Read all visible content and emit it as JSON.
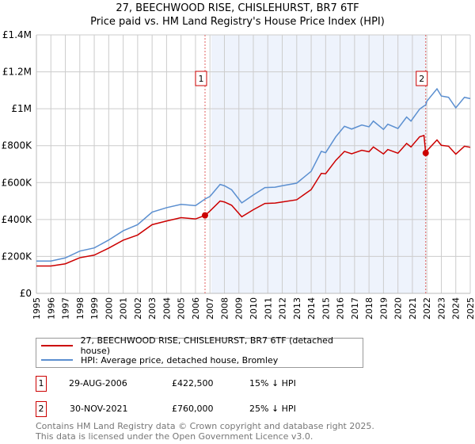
{
  "title_line1": "27, BEECHWOOD RISE, CHISLEHURST, BR7 6TF",
  "title_line2": "Price paid vs. HM Land Registry's House Price Index (HPI)",
  "legend": {
    "property": "27, BEECHWOOD RISE, CHISLEHURST, BR7 6TF (detached house)",
    "hpi": "HPI: Average price, detached house, Bromley"
  },
  "colors": {
    "property": "#cc0000",
    "hpi": "#5b8fd0",
    "shade": "#eef3fc"
  },
  "sales": [
    {
      "num": "1",
      "date": "29-AUG-2006",
      "price": "£422,500",
      "delta": "15% ↓ HPI"
    },
    {
      "num": "2",
      "date": "30-NOV-2021",
      "price": "£760,000",
      "delta": "25% ↓ HPI"
    }
  ],
  "footer": {
    "line1": "Contains HM Land Registry data © Crown copyright and database right 2025.",
    "line2": "This data is licensed under the Open Government Licence v3.0."
  },
  "chart_data": {
    "type": "line",
    "title": "Price paid vs. HM Land Registry's House Price Index (HPI)",
    "xlim": [
      1995,
      2025
    ],
    "ylim": [
      0,
      1400
    ],
    "y_unit": "£K",
    "ytick_values": [
      0,
      200,
      400,
      600,
      800,
      1000,
      1200,
      1400
    ],
    "ytick_labels": [
      "£0",
      "£200K",
      "£400K",
      "£600K",
      "£800K",
      "£1M",
      "£1.2M",
      "£1.4M"
    ],
    "xtick_labels": [
      "1995",
      "1996",
      "1997",
      "1998",
      "1999",
      "2000",
      "2001",
      "2002",
      "2003",
      "2004",
      "2005",
      "2006",
      "2007",
      "2008",
      "2009",
      "2010",
      "2011",
      "2012",
      "2013",
      "2014",
      "2015",
      "2016",
      "2017",
      "2018",
      "2019",
      "2020",
      "2021",
      "2022",
      "2023",
      "2024",
      "2025"
    ],
    "grid": true,
    "shaded_range": [
      2007.1,
      2021.92
    ],
    "x": [
      1995,
      1996,
      1997,
      1998,
      1999,
      2000,
      2001,
      2002,
      2003,
      2004,
      2005,
      2006,
      2006.66,
      2007,
      2007.7,
      2008,
      2008.5,
      2009.2,
      2010,
      2010.8,
      2011.5,
      2012,
      2013,
      2014,
      2014.7,
      2015,
      2015.7,
      2016.3,
      2016.8,
      2017.5,
      2018,
      2018.3,
      2019,
      2019.3,
      2020,
      2020.6,
      2020.9,
      2021.5,
      2021.8,
      2021.92,
      2022,
      2022.7,
      2023,
      2023.5,
      2024,
      2024.6,
      2025
    ],
    "series": [
      {
        "name": "27, BEECHWOOD RISE, CHISLEHURST, BR7 6TF (detached house)",
        "color": "#cc0000",
        "values": [
          148,
          148,
          160,
          193,
          207,
          245,
          288,
          316,
          372,
          392,
          410,
          403,
          422,
          446,
          500,
          495,
          477,
          415,
          453,
          487,
          489,
          495,
          507,
          562,
          650,
          648,
          720,
          769,
          756,
          775,
          767,
          793,
          755,
          779,
          759,
          812,
          793,
          848,
          855,
          760,
          772,
          831,
          802,
          797,
          754,
          797,
          791
        ]
      },
      {
        "name": "HPI: Average price, detached house, Bromley",
        "color": "#5b8fd0",
        "values": [
          175,
          175,
          192,
          229,
          246,
          289,
          339,
          372,
          440,
          464,
          482,
          475,
          511,
          525,
          590,
          583,
          561,
          490,
          533,
          573,
          575,
          583,
          597,
          661,
          769,
          762,
          848,
          905,
          890,
          912,
          902,
          933,
          888,
          916,
          893,
          955,
          933,
          998,
          1015,
          1020,
          1041,
          1108,
          1069,
          1062,
          1005,
          1062,
          1055
        ]
      }
    ],
    "markers": [
      {
        "label": "1",
        "x": 2006.66,
        "y": 422.5
      },
      {
        "label": "2",
        "x": 2021.92,
        "y": 760
      }
    ]
  }
}
